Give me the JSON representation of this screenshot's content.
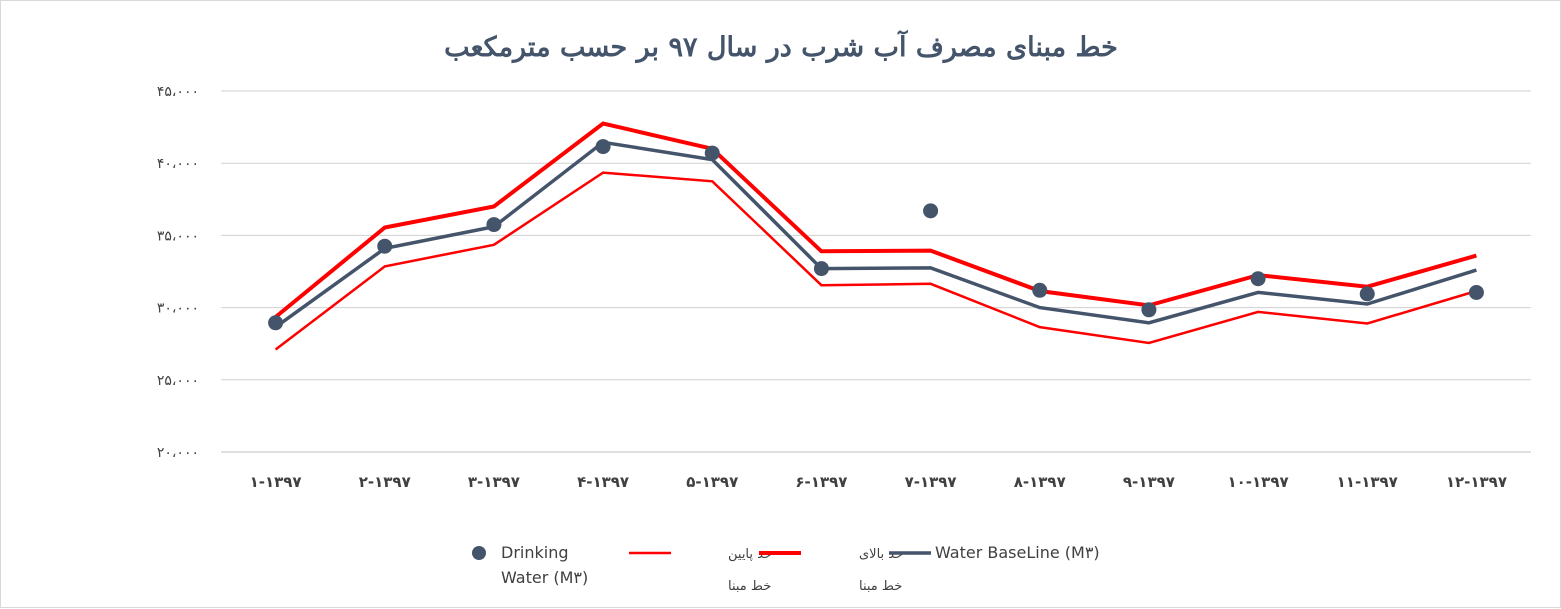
{
  "chart_data": {
    "type": "line",
    "title": "خط مبنای مصرف آب شرب در سال ۹۷ بر حسب مترمکعب",
    "categories": [
      "۱-۱۳۹۷",
      "۲-۱۳۹۷",
      "۳-۱۳۹۷",
      "۴-۱۳۹۷",
      "۵-۱۳۹۷",
      "۶-۱۳۹۷",
      "۷-۱۳۹۷",
      "۸-۱۳۹۷",
      "۹-۱۳۹۷",
      "۱۰-۱۳۹۷",
      "۱۱-۱۳۹۷",
      "۱۲-۱۳۹۷"
    ],
    "ylim": [
      20000,
      45000
    ],
    "yticks": [
      20000,
      25000,
      30000,
      35000,
      40000,
      45000
    ],
    "ytick_labels": [
      "۲۰،۰۰۰",
      "۲۵،۰۰۰",
      "۳۰،۰۰۰",
      "۳۵،۰۰۰",
      "۴۰،۰۰۰",
      "۴۵،۰۰۰"
    ],
    "grid": true,
    "legend_position": "bottom",
    "series": [
      {
        "name": "Drinking Water (M۳)",
        "style": "markers",
        "color": "#44546a",
        "values": [
          28950,
          34250,
          35750,
          41150,
          40700,
          32700,
          36700,
          31200,
          29850,
          32000,
          30950,
          31050
        ]
      },
      {
        "name_line1": "حد پایین",
        "name_line2": "خط مبنا",
        "style": "line-thin",
        "color": "#ff0000",
        "values": [
          27100,
          32850,
          34350,
          39350,
          38750,
          31550,
          31650,
          28650,
          27550,
          29700,
          28900,
          31150
        ]
      },
      {
        "name_line1": "حد بالای",
        "name_line2": "خط مبنا",
        "style": "line-thick",
        "color": "#ff0000",
        "values": [
          29350,
          35550,
          37000,
          42750,
          41000,
          33900,
          33950,
          31150,
          30150,
          32250,
          31450,
          33600
        ]
      },
      {
        "name": "Water BaseLine (M۳)",
        "style": "line-medium",
        "color": "#44546a",
        "values": [
          28650,
          34100,
          35600,
          41450,
          40250,
          32700,
          32750,
          30000,
          28950,
          31050,
          30250,
          32600
        ]
      }
    ]
  }
}
